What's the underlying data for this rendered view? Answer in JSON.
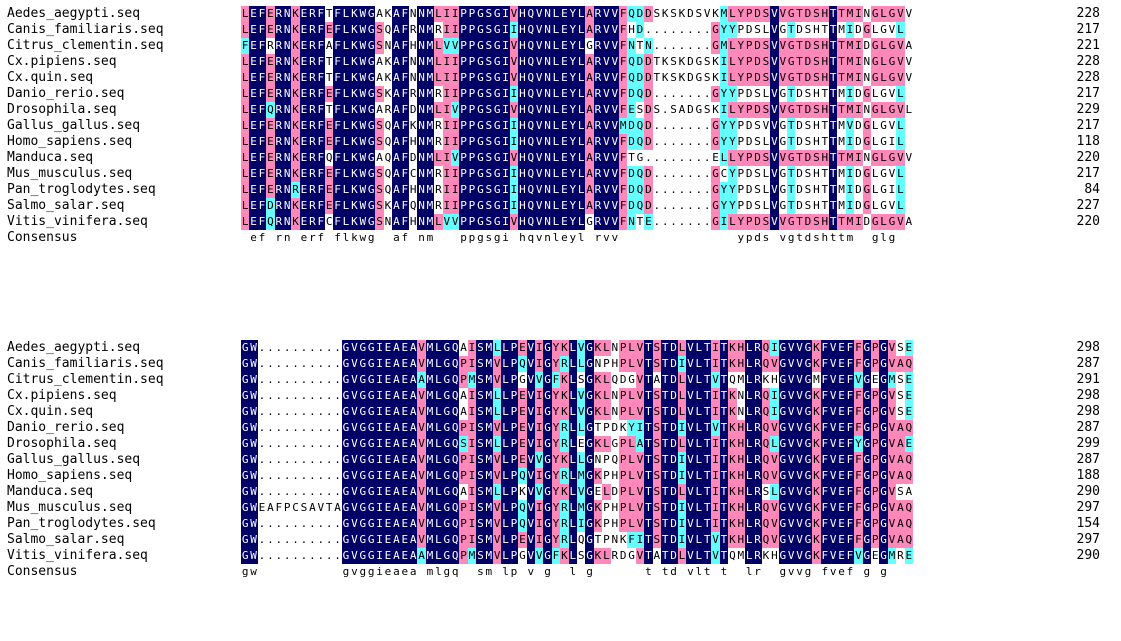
{
  "colors": {
    "identical": "#000066",
    "similar_pink": "#ff88bb",
    "similar_cyan": "#66ffff",
    "text_light": "#ffffff",
    "text_dark": "#000000"
  },
  "blocks": [
    {
      "rows": [
        {
          "name": "Aedes_aegypti.seq",
          "seq": "LEFERNKERFTFLKWGAKAFNNMLIIPPGSGIVHQVNLEYLARVVFQDDSKSKDSVKMLYPDSVVGTDSHTTMINGLGVV",
          "end": "228"
        },
        {
          "name": "Canis_familiaris.seq",
          "seq": "LEFERNKERFEFLKWGSQAFRNMRIIPPGSGIIHQVNLEYLARVVFHD........GYYPDSLVGTDSHTTMIDGLGVL",
          "end": "217"
        },
        {
          "name": "Citrus_clementin.seq",
          "seq": "FEFRRNKERFAFLKWGSNAFHNMLVVPPGSGIVHQVNLEYLGRVVFNTN.......GMLYPDSVVGTDSHTTMIDGLGVA",
          "end": "221"
        },
        {
          "name": "Cx.pipiens.seq",
          "seq": "LEFERNKERFTFLKWGAKAFNNMLIIPPGSGIVHQVNLEYLARVVFQDDTKSKDGSKILYPDSVVGTDSHTTMINGLGVV",
          "end": "228"
        },
        {
          "name": "Cx.quin.seq",
          "seq": "LEFERNKERFTFLKWGAKAFNNMLIIPPGSGIVHQVNLEYLARVVFQDDTKSKDGSKILYPDSVVGTDSHTTMINGLGVV",
          "end": "228"
        },
        {
          "name": "Danio_rerio.seq",
          "seq": "LEFERNKERFEFLKWGSKAFRNMRIIPPGSGIIHQVNLEYLARVVFDQD.......GYYPDSLVGTDSHTTMIDGLGVL",
          "end": "217"
        },
        {
          "name": "Drosophila.seq",
          "seq": "LEFQRNKERFTFLKWGARAFDNMLIVPPGSGIVHQVNLEYLARVVFESDS.SADGSKILYPDSVVGTDSHTTMINGLGVL",
          "end": "229"
        },
        {
          "name": "Gallus_gallus.seq",
          "seq": "LEFERNKERFEFLKWGSQAFKNMRIIPPGSGIIHQVNLEYLARVVMDQD.......GYYPDSVVGTDSHTTMVDGLGVL",
          "end": "217"
        },
        {
          "name": "Homo_sapiens.seq",
          "seq": "LEFERNKERFEFLKWGSQAFHNMRIIPPGSGIIHQVNLEYLARVVFDQD.......GYYPDSLVGTDSHTTMIDGLGIL",
          "end": "118"
        },
        {
          "name": "Manduca.seq",
          "seq": "LEFERNKERFQFLKWGAQAFDNMLIVPPGSGIVHQVNLEYLARVVFTG........ELLYPDSVVGTDSHTTMINGLGVV",
          "end": "220"
        },
        {
          "name": "Mus_musculus.seq",
          "seq": "LEFERNKERFEFLKWGSQAFCNMRIIPPGSGIIHQVNLEYLARVVFDQD.......GCYPDSLVGTDSHTTMIDGLGVL",
          "end": "217"
        },
        {
          "name": "Pan_troglodytes.seq",
          "seq": "LEFERNRERFEFLKWGSQAFHNMRIIPPGSGIIHQVNLEYLARVVFDQD.......GYYPDSLVGTDSHTTMIDGLGIL",
          "end": "84"
        },
        {
          "name": "Salmo_salar.seq",
          "seq": "LEFDRNKERFEFLKWGSKAFQNMRIIPPGSGIIHQVNLEYLARVVFDQD.......GYYPDSLVGTDSHTTMIDGLGVL",
          "end": "227"
        },
        {
          "name": "Vitis_vinifera.seq",
          "seq": "LEFQRNKERFCFLKWGSNAFHNMLVVPPGSGIVHQVNLEYLGRVVFNTE.......GILYPDSVVGTDSHTTMIDGLGVA",
          "end": "220"
        }
      ],
      "consensus_label": "Consensus",
      "consensus": " ef rn erf flkwg  af nm   ppgsgi hqvnleyl rvv              ypds vgtdshttm  glg  "
    },
    {
      "rows": [
        {
          "name": "Aedes_aegypti.seq",
          "seq": "GW..........GVGGIEAEAVMLGQAISMLLPEVIGYKLVGKLNPLVTSTDLVLTITKHLRQIGVVGKFVEFFGPGVSE",
          "end": "298"
        },
        {
          "name": "Canis_familiaris.seq",
          "seq": "GW..........GVGGIEAEAVMLGQPISMVLPQVIGYRLLGNPHPLVTSTDIVLTITKHLRQVGVVGKFVEFFGPGVAQ",
          "end": "287"
        },
        {
          "name": "Citrus_clementin.seq",
          "seq": "GW..........GVGGIEAEAAMLGQPMSMVLPGVVGFKLSGKLQDGVTATDLVLTVTQMLRKHGVVGMFVEFVGEGMSE",
          "end": "291"
        },
        {
          "name": "Cx.pipiens.seq",
          "seq": "GW..........GVGGIEAEAVMLGQAISMLLPEVIGYKLVGKLNPLVTSTDLVLTITKNLRQIGVVGKFVEFFGPGVSE",
          "end": "298"
        },
        {
          "name": "Cx.quin.seq",
          "seq": "GW..........GVGGIEAEAVMLGQAISMLLPEVIGYKLVGKLNPLVTSTDLVLTITKNLRQIGVVGKFVEFFGPGVSE",
          "end": "298"
        },
        {
          "name": "Danio_rerio.seq",
          "seq": "GW..........GVGGIEAEAVMLGQPISMVLPEVIGYRLLGTPDKYITSTDIVLTVTKHLRQVGVVGKFVEFFGPGVAQ",
          "end": "287"
        },
        {
          "name": "Drosophila.seq",
          "seq": "GW..........GVGGIEAEAVMLGQSISMLLPEVIGYRLEGKLGPLATSTDLVLTITKHLRQLGVVGKFVEFYGPGVAE",
          "end": "299"
        },
        {
          "name": "Gallus_gallus.seq",
          "seq": "GW..........GVGGIEAEAVMLGQPISMVLPEVVGYKLLGNPQPLVTSTDIVLTITKHLRQVGVVGKFVEFFGPGVAQ",
          "end": "287"
        },
        {
          "name": "Homo_sapiens.seq",
          "seq": "GW..........GVGGIEAEAVMLGQPISMVLPQVIGYRLMGKPHPLVTSTDIVLTITKHLRQVGVVGKFVEFFGPGVAQ",
          "end": "188"
        },
        {
          "name": "Manduca.seq",
          "seq": "GW..........GVGGIEAEAVMLGQAISMLLPKVVGYKLVGELDPLVTSTDLVLTITKHLRSLGVVGKFVEFFGPGVSA",
          "end": "290"
        },
        {
          "name": "Mus_musculus.seq",
          "seq": "GWEAFPCSAVTAGVGGIEAEAVMLGQPISMVLPQVIGYRLMGKPHPLVTSTDIVLTITKHLRQVGVVGKFVEFFGPGVAQ",
          "end": "297"
        },
        {
          "name": "Pan_troglodytes.seq",
          "seq": "GW..........GVGGIEAEAVMLGQPISMVLPQVIGYRLIGKPHPLVTSTDIVLTITKHLRQVGVVGKFVEFFGPGVAQ",
          "end": "154"
        },
        {
          "name": "Salmo_salar.seq",
          "seq": "GW..........GVGGIEAEAVMLGQPISMVLPEVIGYRLQGTPNKFITSTDIVLTVTKHLRQVGVVGKFVEFFGPGVAQ",
          "end": "297"
        },
        {
          "name": "Vitis_vinifera.seq",
          "seq": "GW..........GVGGIEAEAAMLGQPMSMVLPGVVGFKLSGKLRDGVTATDLVLTVTQMLRKHGVVGKFVEFVGEGMRE",
          "end": "290"
        }
      ],
      "consensus_label": "Consensus",
      "consensus": "gw          gvggieaea mlgq  sm lp v g  l g      t td vlt t  lr  gvvg fvef g g   "
    }
  ]
}
